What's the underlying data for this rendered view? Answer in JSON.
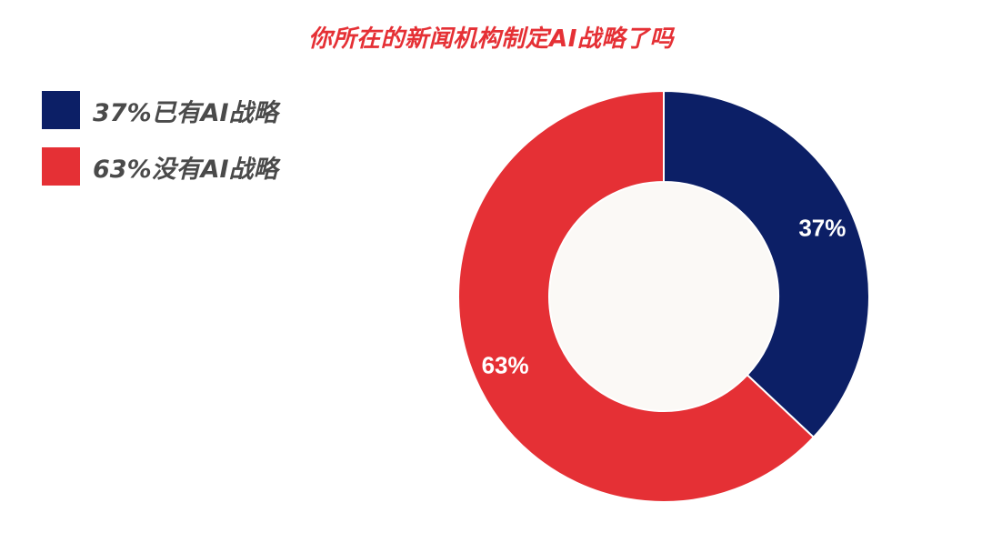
{
  "chart_data": {
    "type": "pie",
    "title": "你所在的新闻机构制定AI战略了吗",
    "title_color": "#e53035",
    "legend_position": "top-left",
    "inner_color": "#fbf9f6",
    "slices": [
      {
        "legend_label": "37%已有AI战略",
        "value": 37,
        "data_label": "37%",
        "color": "#0c1f66"
      },
      {
        "legend_label": "63%没有AI战略",
        "value": 63,
        "data_label": "63%",
        "color": "#e53035"
      }
    ]
  }
}
